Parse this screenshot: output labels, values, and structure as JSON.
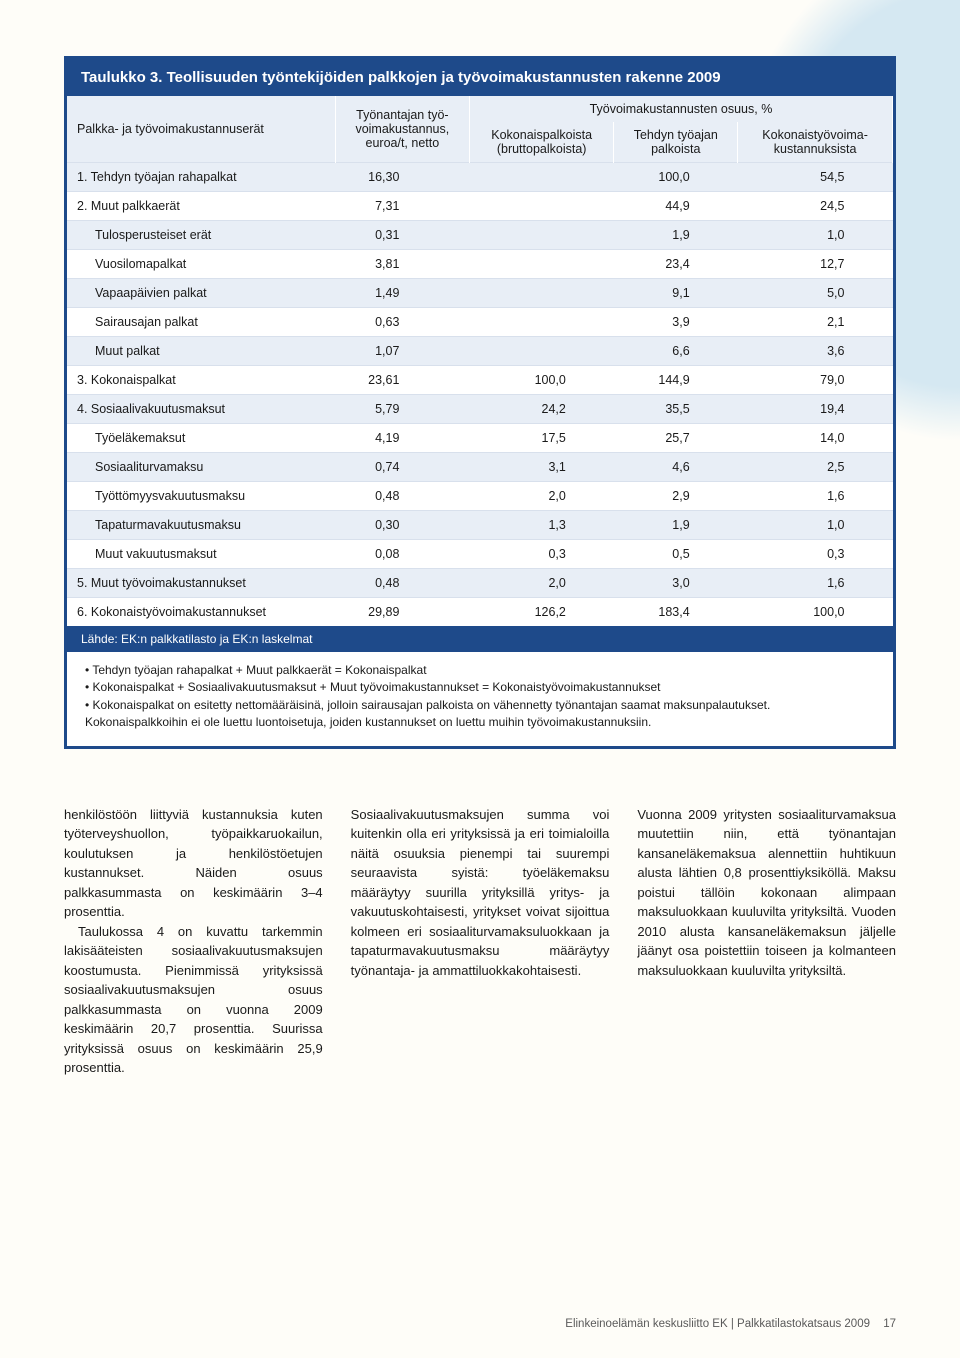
{
  "table": {
    "title": "Taulukko 3. Teollisuuden työntekijöiden palkkojen ja työvoimakustannusten rakenne 2009",
    "header": {
      "col1": "Palkka- ja työvoimakustannuserät",
      "col2": "Työnantajan työ-\nvoimakustannus,\neuroa/t, netto",
      "grouptitle": "Työvoimakustannusten osuus, %",
      "col3": "Kokonaispalkoista\n(bruttopalkoista)",
      "col4": "Tehdyn työajan\npalkoista",
      "col5": "Kokonaistyövoima-\nkustannuksista"
    },
    "rows": [
      {
        "label": "1. Tehdyn työajan rahapalkat",
        "v1": "16,30",
        "v2": "",
        "v3": "100,0",
        "v4": "54,5",
        "shade": true,
        "indent": false
      },
      {
        "label": "2. Muut palkkaerät",
        "v1": "7,31",
        "v2": "",
        "v3": "44,9",
        "v4": "24,5",
        "shade": false,
        "indent": false
      },
      {
        "label": "Tulosperusteiset erät",
        "v1": "0,31",
        "v2": "",
        "v3": "1,9",
        "v4": "1,0",
        "shade": true,
        "indent": true
      },
      {
        "label": "Vuosilomapalkat",
        "v1": "3,81",
        "v2": "",
        "v3": "23,4",
        "v4": "12,7",
        "shade": false,
        "indent": true
      },
      {
        "label": "Vapaapäivien palkat",
        "v1": "1,49",
        "v2": "",
        "v3": "9,1",
        "v4": "5,0",
        "shade": true,
        "indent": true
      },
      {
        "label": "Sairausajan palkat",
        "v1": "0,63",
        "v2": "",
        "v3": "3,9",
        "v4": "2,1",
        "shade": false,
        "indent": true
      },
      {
        "label": "Muut palkat",
        "v1": "1,07",
        "v2": "",
        "v3": "6,6",
        "v4": "3,6",
        "shade": true,
        "indent": true
      },
      {
        "label": "3. Kokonaispalkat",
        "v1": "23,61",
        "v2": "100,0",
        "v3": "144,9",
        "v4": "79,0",
        "shade": false,
        "indent": false
      },
      {
        "label": "4. Sosiaalivakuutusmaksut",
        "v1": "5,79",
        "v2": "24,2",
        "v3": "35,5",
        "v4": "19,4",
        "shade": true,
        "indent": false
      },
      {
        "label": "Työeläkemaksut",
        "v1": "4,19",
        "v2": "17,5",
        "v3": "25,7",
        "v4": "14,0",
        "shade": false,
        "indent": true
      },
      {
        "label": "Sosiaaliturvamaksu",
        "v1": "0,74",
        "v2": "3,1",
        "v3": "4,6",
        "v4": "2,5",
        "shade": true,
        "indent": true
      },
      {
        "label": "Työttömyysvakuutusmaksu",
        "v1": "0,48",
        "v2": "2,0",
        "v3": "2,9",
        "v4": "1,6",
        "shade": false,
        "indent": true
      },
      {
        "label": "Tapaturmavakuutusmaksu",
        "v1": "0,30",
        "v2": "1,3",
        "v3": "1,9",
        "v4": "1,0",
        "shade": true,
        "indent": true
      },
      {
        "label": "Muut vakuutusmaksut",
        "v1": "0,08",
        "v2": "0,3",
        "v3": "0,5",
        "v4": "0,3",
        "shade": false,
        "indent": true
      },
      {
        "label": "5. Muut työvoimakustannukset",
        "v1": "0,48",
        "v2": "2,0",
        "v3": "3,0",
        "v4": "1,6",
        "shade": true,
        "indent": false
      },
      {
        "label": "6. Kokonaistyövoimakustannukset",
        "v1": "29,89",
        "v2": "126,2",
        "v3": "183,4",
        "v4": "100,0",
        "shade": false,
        "indent": false
      }
    ],
    "source": "Lähde: EK:n palkkatilasto ja EK:n laskelmat",
    "notes": [
      "• Tehdyn työajan rahapalkat + Muut palkkaerät = Kokonaispalkat",
      "• Kokonaispalkat + Sosiaalivakuutusmaksut + Muut työvoimakustannukset = Kokonaistyövoimakustannukset",
      "• Kokonaispalkat on esitetty nettomääräisinä, jolloin sairausajan palkoista on vähennetty työnantajan saamat maksunpalautukset.",
      "  Kokonaispalkkoihin ei ole luettu luontoisetuja, joiden kustannukset on luettu muihin työvoimakustannuksiin."
    ]
  },
  "body": {
    "col1": {
      "p1": "henkilöstöön liittyviä kustannuksia kuten työterveyshuollon, työpaikkaruokailun, koulutuksen ja henkilöstöetujen kustannukset. Näiden osuus palkkasummasta on keskimäärin 3–4 prosenttia.",
      "p2": "Taulukossa 4 on kuvattu tarkemmin lakisääteisten sosiaalivakuutusmaksujen koostumusta. Pienimmissä yrityksissä sosiaalivakuutusmaksujen osuus palkkasummasta on vuonna 2009 keskimäärin 20,7 prosenttia. Suurissa yrityksissä osuus on keskimäärin 25,9 prosenttia."
    },
    "col2": {
      "p1": "Sosiaalivakuutusmaksujen summa voi kuitenkin olla eri yrityksissä ja eri toimialoilla näitä osuuksia pienempi tai suurempi seuraavista syistä: työeläkemaksu määräytyy suurilla yrityksillä yritys- ja vakuutuskohtaisesti, yritykset voivat sijoittua kolmeen eri sosiaaliturvamaksuluokkaan ja tapaturmavakuutusmaksu määräytyy työnantaja- ja ammattiluokkakohtaisesti."
    },
    "col3": {
      "p1": "Vuonna 2009 yritysten sosiaaliturvamaksua muutettiin niin, että työnantajan kansaneläkemaksua alennettiin huhtikuun alusta lähtien 0,8 prosenttiyksiköllä. Maksu poistui tällöin kokonaan alimpaan maksuluokkaan kuuluvilta yrityksiltä. Vuoden 2010 alusta kansaneläkemaksun jäljelle jäänyt osa poistettiin toiseen ja kolmanteen maksuluokkaan kuuluvilta yrityksiltä."
    }
  },
  "footer": {
    "text": "Elinkeinoelämän keskusliitto EK  |  Palkkatilastokatsaus 2009",
    "page": "17"
  }
}
